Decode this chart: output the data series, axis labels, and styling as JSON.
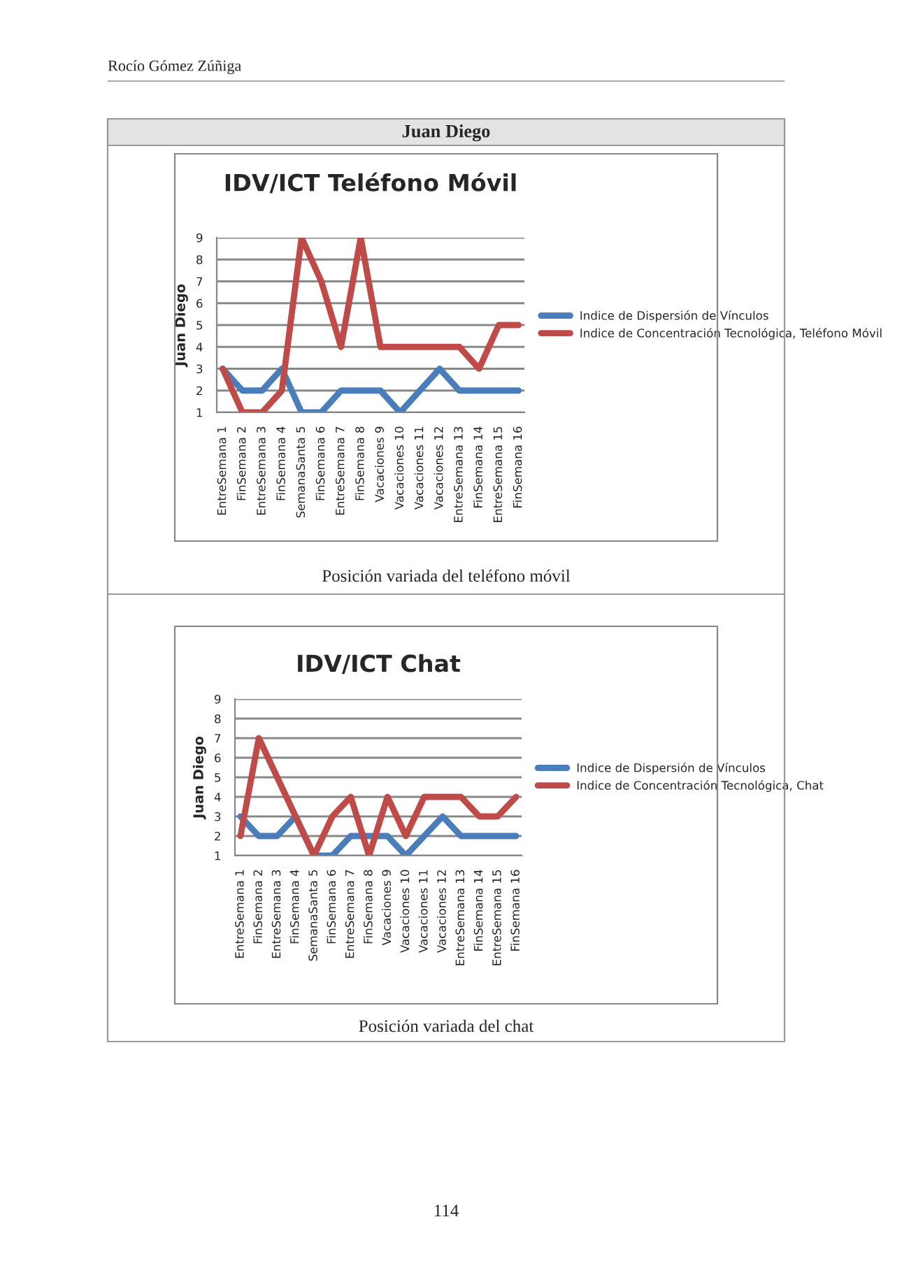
{
  "chart_data": [
    {
      "type": "line",
      "title": "IDV/ICT Teléfono Móvil",
      "ylabel": "Juan Diego",
      "annotations": [
        "Rocío Gómez Zúñiga",
        "Juan Diego",
        "Posición variada del teléfono móvil"
      ],
      "categories": [
        "EntreSemana 1",
        "FinSemana 2",
        "EntreSemana 3",
        "FinSemana 4",
        "SemanaSanta 5",
        "FinSemana 6",
        "EntreSemana 7",
        "FinSemana 8",
        "Vacaciones 9",
        "Vacaciones 10",
        "Vacaciones 11",
        "Vacaciones 12",
        "EntreSemana 13",
        "FinSemana 14",
        "EntreSemana 15",
        "FinSemana 16"
      ],
      "series": [
        {
          "name": "Indice de Dispersión de Vínculos",
          "color": "#4a7ebb",
          "values": [
            3,
            2,
            2,
            3,
            1,
            1,
            2,
            2,
            2,
            1,
            2,
            3,
            2,
            2,
            2,
            2
          ]
        },
        {
          "name": "Indice de Concentración Tecnológica, Teléfono Móvil",
          "color": "#be4b48",
          "values": [
            3,
            1,
            1,
            2,
            9,
            7,
            4,
            9,
            4,
            4,
            4,
            4,
            4,
            3,
            5,
            5
          ]
        }
      ],
      "ylim": [
        1,
        9
      ],
      "yticks": [
        1,
        2,
        3,
        4,
        5,
        6,
        7,
        8,
        9
      ],
      "grid": "y",
      "legend": "right",
      "marker": "none",
      "line_style": "solid"
    },
    {
      "type": "line",
      "title": "IDV/ICT Chat",
      "ylabel": "Juan Diego",
      "annotations": [
        "Posición variada del chat",
        "114"
      ],
      "categories": [
        "EntreSemana 1",
        "FinSemana 2",
        "EntreSemana 3",
        "FinSemana 4",
        "SemanaSanta 5",
        "FinSemana 6",
        "EntreSemana 7",
        "FinSemana 8",
        "Vacaciones 9",
        "Vacaciones 10",
        "Vacaciones 11",
        "Vacaciones 12",
        "EntreSemana 13",
        "FinSemana 14",
        "EntreSemana 15",
        "FinSemana 16"
      ],
      "series": [
        {
          "name": "Indice de Dispersión de Vínculos",
          "color": "#4a7ebb",
          "values": [
            3,
            2,
            2,
            3,
            1,
            1,
            2,
            2,
            2,
            1,
            2,
            3,
            2,
            2,
            2,
            2
          ]
        },
        {
          "name": "Indice de Concentración Tecnológica, Chat",
          "color": "#be4b48",
          "values": [
            2,
            7,
            5,
            3,
            1,
            3,
            4,
            1,
            4,
            2,
            4,
            4,
            4,
            3,
            3,
            4
          ]
        }
      ],
      "ylim": [
        1,
        9
      ],
      "yticks": [
        1,
        2,
        3,
        4,
        5,
        6,
        7,
        8,
        9
      ],
      "grid": "y",
      "legend": "right",
      "marker": "none",
      "line_style": "solid"
    }
  ]
}
